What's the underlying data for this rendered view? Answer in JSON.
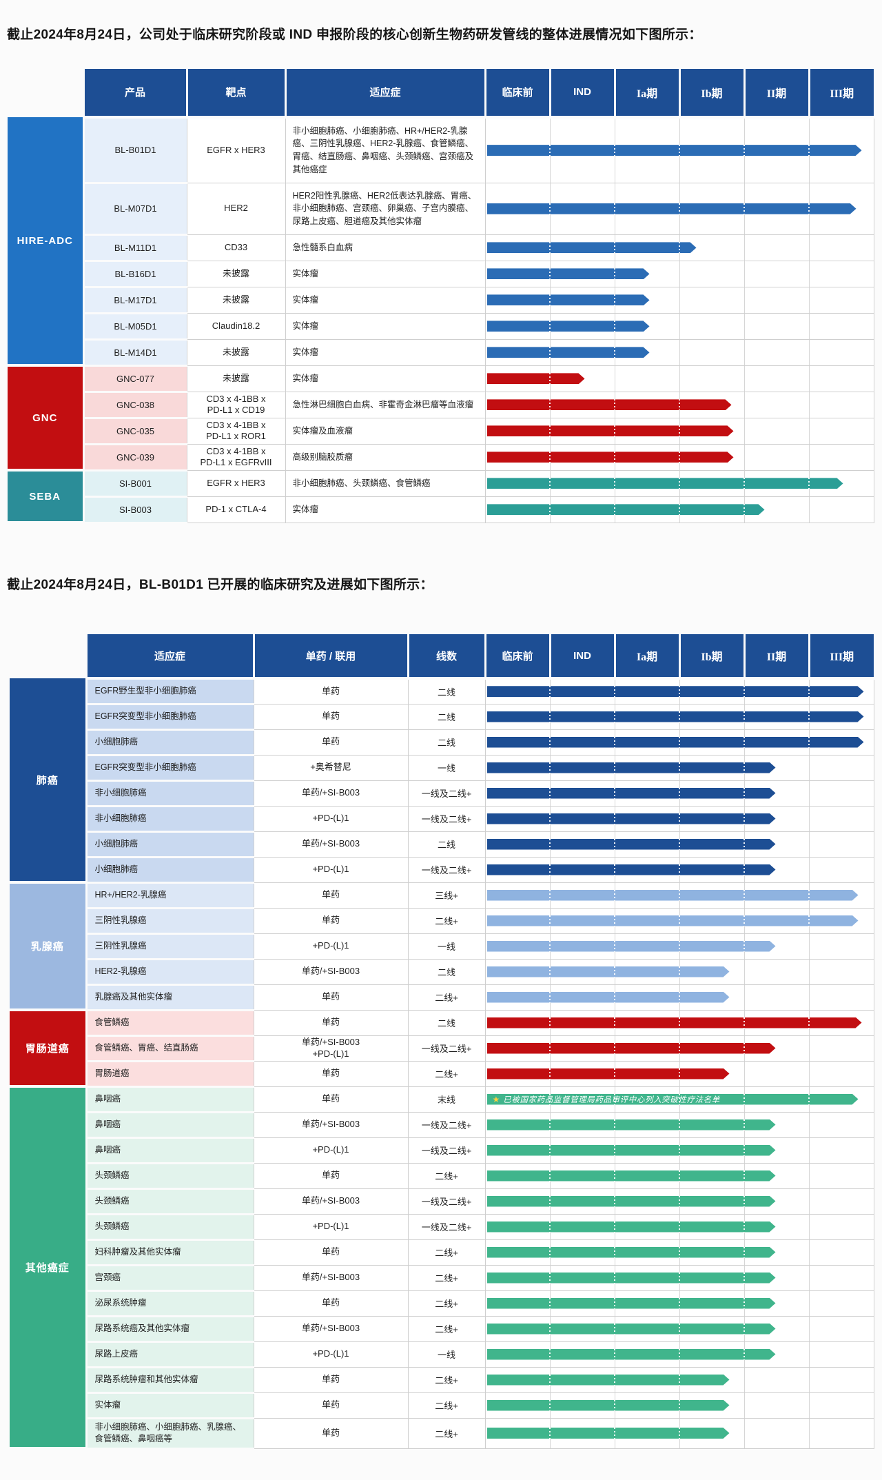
{
  "intro1": "截止2024年8月24日，公司处于临床研究阶段或 IND 申报阶段的核心创新生物药研发管线的整体进展情况如下图所示：",
  "intro2": "截止2024年8月24日，BL-B01D1 已开展的临床研究及进展如下图所示：",
  "annotation": {
    "star": "★",
    "star_color": "#ffd23e",
    "text": "已被国家药品监督管理局药品审评中心列入突破性疗法名单"
  },
  "colors": {
    "header_bg": "#1d4e94",
    "header_text": "#ffffff",
    "grid_line": "#cfcfcf"
  },
  "phases": [
    "临床前",
    "IND",
    "Ia期",
    "Ib期",
    "II期",
    "III期"
  ],
  "progress_scale": "progress = number of phase columns spanned by the arrow bar, from 临床前 (0) to end of III期 (6)",
  "chart_data": [
    {
      "type": "gantt",
      "name": "核心创新生物药研发管线整体进展",
      "columns": {
        "product": "产品",
        "target": "靶点",
        "indication": "适应症"
      },
      "phases": [
        "临床前",
        "IND",
        "Ia期",
        "Ib期",
        "II期",
        "III期"
      ],
      "groups": [
        {
          "name": "HIRE-ADC",
          "colors": {
            "group_bg": "#2173c4",
            "row_bg": "#e6effa",
            "bar": "#2b6cb5"
          },
          "rows": [
            {
              "product": "BL-B01D1",
              "target": "EGFR x HER3",
              "indication": "非小细胞肺癌、小细胞肺癌、HR+/HER2-乳腺癌、三阴性乳腺癌、HER2-乳腺癌、食管鳞癌、胃癌、结直肠癌、鼻咽癌、头颈鳞癌、宫颈癌及其他癌症",
              "progress": 5.83
            },
            {
              "product": "BL-M07D1",
              "target": "HER2",
              "indication": "HER2阳性乳腺癌、HER2低表达乳腺癌、胃癌、非小细胞肺癌、宫颈癌、卵巢癌、子宫内膜癌、尿路上皮癌、胆道癌及其他实体瘤",
              "progress": 5.74
            },
            {
              "product": "BL-M11D1",
              "target": "CD33",
              "indication": "急性髓系白血病",
              "progress": 3.28
            },
            {
              "product": "BL-B16D1",
              "target": "未披露",
              "indication": "实体瘤",
              "progress": 2.55
            },
            {
              "product": "BL-M17D1",
              "target": "未披露",
              "indication": "实体瘤",
              "progress": 2.55
            },
            {
              "product": "BL-M05D1",
              "target": "Claudin18.2",
              "indication": "实体瘤",
              "progress": 2.55
            },
            {
              "product": "BL-M14D1",
              "target": "未披露",
              "indication": "实体瘤",
              "progress": 2.55
            }
          ]
        },
        {
          "name": "GNC",
          "colors": {
            "group_bg": "#c20e11",
            "row_bg": "#f9d9d9",
            "bar": "#c20e11"
          },
          "rows": [
            {
              "product": "GNC-077",
              "target": "未披露",
              "indication": "实体瘤",
              "progress": 1.55
            },
            {
              "product": "GNC-038",
              "target": "CD3 x 4-1BB x\nPD-L1 x CD19",
              "indication": "急性淋巴细胞白血病、非霍奇金淋巴瘤等血液瘤",
              "progress": 3.82
            },
            {
              "product": "GNC-035",
              "target": "CD3 x 4-1BB x\nPD-L1 x ROR1",
              "indication": "实体瘤及血液瘤",
              "progress": 3.85
            },
            {
              "product": "GNC-039",
              "target": "CD3 x 4-1BB x\nPD-L1 x EGFRvIII",
              "indication": "高级别脑胶质瘤",
              "progress": 3.85
            }
          ]
        },
        {
          "name": "SEBA",
          "colors": {
            "group_bg": "#2b8d98",
            "row_bg": "#e0f1f4",
            "bar": "#2b9e96"
          },
          "rows": [
            {
              "product": "SI-B001",
              "target": "EGFR x HER3",
              "indication": "非小细胞肺癌、头颈鳞癌、食管鳞癌",
              "progress": 5.54
            },
            {
              "product": "SI-B003",
              "target": "PD-1 x CTLA-4",
              "indication": "实体瘤",
              "progress": 4.33
            }
          ]
        }
      ]
    },
    {
      "type": "gantt",
      "name": "BL-B01D1 已开展的临床研究及进展",
      "columns": {
        "indication": "适应症",
        "regimen": "单药 / 联用",
        "line": "线数"
      },
      "phases": [
        "临床前",
        "IND",
        "Ia期",
        "Ib期",
        "II期",
        "III期"
      ],
      "groups": [
        {
          "name": "肺癌",
          "colors": {
            "group_bg": "#1d4e94",
            "row_bg": "#c9d9f0",
            "bar": "#1d4e94"
          },
          "rows": [
            {
              "indication": "EGFR野生型非小细胞肺癌",
              "regimen": "单药",
              "line": "二线",
              "progress": 5.86
            },
            {
              "indication": "EGFR突变型非小细胞肺癌",
              "regimen": "单药",
              "line": "二线",
              "progress": 5.86
            },
            {
              "indication": "小细胞肺癌",
              "regimen": "单药",
              "line": "二线",
              "progress": 5.86
            },
            {
              "indication": "EGFR突变型非小细胞肺癌",
              "regimen": "+奥希替尼",
              "line": "一线",
              "progress": 4.5
            },
            {
              "indication": "非小细胞肺癌",
              "regimen": "单药/+SI-B003",
              "line": "一线及二线+",
              "progress": 4.5
            },
            {
              "indication": "非小细胞肺癌",
              "regimen": "+PD-(L)1",
              "line": "一线及二线+",
              "progress": 4.5
            },
            {
              "indication": "小细胞肺癌",
              "regimen": "单药/+SI-B003",
              "line": "二线",
              "progress": 4.5
            },
            {
              "indication": "小细胞肺癌",
              "regimen": "+PD-(L)1",
              "line": "一线及二线+",
              "progress": 4.5
            }
          ]
        },
        {
          "name": "乳腺癌",
          "colors": {
            "group_bg": "#9cb8e0",
            "row_bg": "#dce7f6",
            "bar": "#8fb3e0"
          },
          "rows": [
            {
              "indication": "HR+/HER2-乳腺癌",
              "regimen": "单药",
              "line": "三线+",
              "progress": 5.78
            },
            {
              "indication": "三阴性乳腺癌",
              "regimen": "单药",
              "line": "二线+",
              "progress": 5.78
            },
            {
              "indication": "三阴性乳腺癌",
              "regimen": "+PD-(L)1",
              "line": "一线",
              "progress": 4.5
            },
            {
              "indication": "HER2-乳腺癌",
              "regimen": "单药/+SI-B003",
              "line": "二线",
              "progress": 3.79
            },
            {
              "indication": "乳腺癌及其他实体瘤",
              "regimen": "单药",
              "line": "二线+",
              "progress": 3.79
            }
          ]
        },
        {
          "name": "胃肠道癌",
          "colors": {
            "group_bg": "#c20e11",
            "row_bg": "#fbdede",
            "bar": "#c20e11"
          },
          "rows": [
            {
              "indication": "食管鳞癌",
              "regimen": "单药",
              "line": "二线",
              "progress": 5.83
            },
            {
              "indication": "食管鳞癌、胃癌、结直肠癌",
              "regimen": "单药/+SI-B003\n+PD-(L)1",
              "line": "一线及二线+",
              "progress": 4.5
            },
            {
              "indication": "胃肠道癌",
              "regimen": "单药",
              "line": "二线+",
              "progress": 3.79
            }
          ]
        },
        {
          "name": "其他癌症",
          "colors": {
            "group_bg": "#38ad87",
            "row_bg": "#e2f3ec",
            "bar": "#40b58c"
          },
          "rows": [
            {
              "indication": "鼻咽癌",
              "regimen": "单药",
              "line": "末线",
              "progress": 5.78,
              "note": true
            },
            {
              "indication": "鼻咽癌",
              "regimen": "单药/+SI-B003",
              "line": "一线及二线+",
              "progress": 4.5
            },
            {
              "indication": "鼻咽癌",
              "regimen": "+PD-(L)1",
              "line": "一线及二线+",
              "progress": 4.5
            },
            {
              "indication": "头颈鳞癌",
              "regimen": "单药",
              "line": "二线+",
              "progress": 4.5
            },
            {
              "indication": "头颈鳞癌",
              "regimen": "单药/+SI-B003",
              "line": "一线及二线+",
              "progress": 4.5
            },
            {
              "indication": "头颈鳞癌",
              "regimen": "+PD-(L)1",
              "line": "一线及二线+",
              "progress": 4.5
            },
            {
              "indication": "妇科肿瘤及其他实体瘤",
              "regimen": "单药",
              "line": "二线+",
              "progress": 4.5
            },
            {
              "indication": "宫颈癌",
              "regimen": "单药/+SI-B003",
              "line": "二线+",
              "progress": 4.5
            },
            {
              "indication": "泌尿系统肿瘤",
              "regimen": "单药",
              "line": "二线+",
              "progress": 4.5
            },
            {
              "indication": "尿路系统癌及其他实体瘤",
              "regimen": "单药/+SI-B003",
              "line": "二线+",
              "progress": 4.5
            },
            {
              "indication": "尿路上皮癌",
              "regimen": "+PD-(L)1",
              "line": "一线",
              "progress": 4.5
            },
            {
              "indication": "尿路系统肿瘤和其他实体瘤",
              "regimen": "单药",
              "line": "二线+",
              "progress": 3.79
            },
            {
              "indication": "实体瘤",
              "regimen": "单药",
              "line": "二线+",
              "progress": 3.79
            },
            {
              "indication": "非小细胞肺癌、小细胞肺癌、乳腺癌、食管鳞癌、鼻咽癌等",
              "regimen": "单药",
              "line": "二线+",
              "progress": 3.79
            }
          ]
        }
      ]
    }
  ]
}
